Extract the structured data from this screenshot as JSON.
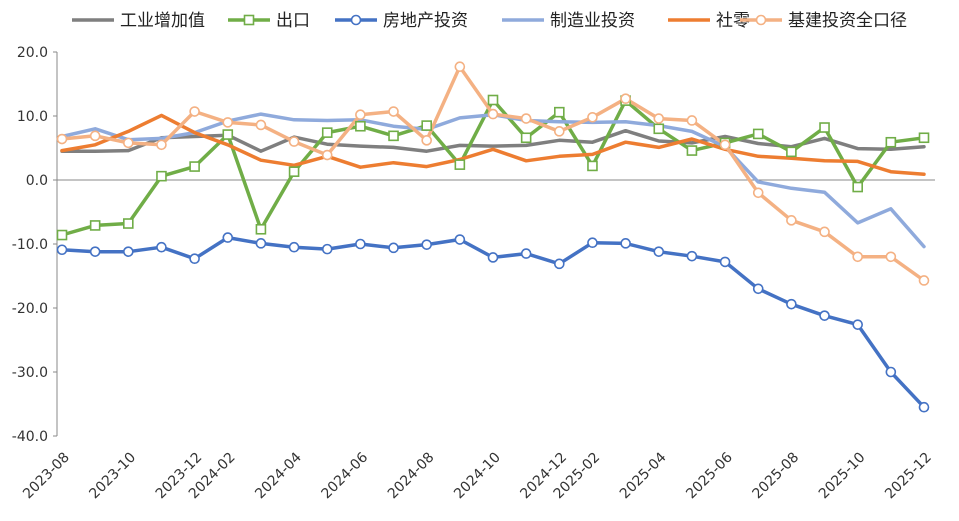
{
  "chart_data": {
    "type": "line",
    "x": [
      "2023-08",
      "2023-09",
      "2023-10",
      "2023-11",
      "2023-12",
      "2024-02",
      "2024-03",
      "2024-04",
      "2024-05",
      "2024-06",
      "2024-07",
      "2024-08",
      "2024-09",
      "2024-10",
      "2024-11",
      "2024-12",
      "2025-02",
      "2025-03",
      "2025-04",
      "2025-05",
      "2025-06",
      "2025-07",
      "2025-08",
      "2025-09",
      "2025-10",
      "2025-11",
      "2025-12"
    ],
    "x_tick_labels": [
      "2023-08",
      "2023-10",
      "2023-12",
      "2024-02",
      "2024-04",
      "2024-06",
      "2024-08",
      "2024-10",
      "2024-12",
      "2025-02",
      "2025-04",
      "2025-06",
      "2025-08",
      "2025-10",
      "2025-12"
    ],
    "ylim": [
      -40,
      20
    ],
    "y_ticks": [
      "-40.0",
      "-30.0",
      "-20.0",
      "-10.0",
      "0.0",
      "10.0",
      "20.0"
    ],
    "legend_position": "top",
    "grid": false,
    "series": [
      {
        "name": "工业增加值",
        "color": "#7f7f7f",
        "marker": "none",
        "values": [
          4.5,
          4.5,
          4.6,
          6.6,
          6.8,
          7.0,
          4.5,
          6.7,
          5.6,
          5.3,
          5.1,
          4.5,
          5.4,
          5.3,
          5.4,
          6.2,
          5.9,
          7.7,
          6.1,
          5.8,
          6.8,
          5.7,
          5.2,
          6.5,
          4.9,
          4.8,
          5.2
        ]
      },
      {
        "name": "出口",
        "color": "#70ad47",
        "marker": "square",
        "values": [
          -8.6,
          -7.1,
          -6.8,
          0.6,
          2.1,
          7.1,
          -7.7,
          1.3,
          7.4,
          8.4,
          6.9,
          8.5,
          2.4,
          12.5,
          6.6,
          10.6,
          2.2,
          12.4,
          8.0,
          4.6,
          5.8,
          7.2,
          4.4,
          8.2,
          -1.1,
          5.9,
          6.6
        ]
      },
      {
        "name": "房地产投资",
        "color": "#4472c4",
        "marker": "circle",
        "values": [
          -10.9,
          -11.2,
          -11.2,
          -10.5,
          -12.3,
          -9.0,
          -9.9,
          -10.5,
          -10.8,
          -10.0,
          -10.6,
          -10.1,
          -9.3,
          -12.1,
          -11.5,
          -13.1,
          -9.8,
          -9.9,
          -11.2,
          -11.9,
          -12.8,
          -17.0,
          -19.4,
          -21.2,
          -22.6,
          -30.0,
          -35.5
        ]
      },
      {
        "name": "制造业投资",
        "color": "#8faadc",
        "marker": "none",
        "values": [
          6.8,
          8.0,
          6.3,
          6.5,
          7.4,
          9.2,
          10.3,
          9.4,
          9.3,
          9.4,
          8.4,
          7.9,
          9.7,
          10.2,
          9.3,
          9.1,
          9.0,
          9.1,
          8.5,
          7.6,
          5.2,
          -0.3,
          -1.3,
          -1.9,
          -6.7,
          -4.5,
          -10.4
        ]
      },
      {
        "name": "社零",
        "color": "#ed7d31",
        "marker": "none",
        "values": [
          4.6,
          5.5,
          7.6,
          10.1,
          7.4,
          5.5,
          3.1,
          2.3,
          3.7,
          2.0,
          2.7,
          2.1,
          3.2,
          4.8,
          3.0,
          3.7,
          4.0,
          5.9,
          5.1,
          6.4,
          4.8,
          3.7,
          3.4,
          3.0,
          2.9,
          1.3,
          0.9
        ]
      },
      {
        "name": "基建投资全口径",
        "color": "#f4b183",
        "marker": "circle",
        "values": [
          6.4,
          6.9,
          5.8,
          5.5,
          10.7,
          9.0,
          8.6,
          6.0,
          3.9,
          10.2,
          10.7,
          6.2,
          17.7,
          10.3,
          9.6,
          7.6,
          9.8,
          12.7,
          9.6,
          9.3,
          5.5,
          -2.0,
          -6.3,
          -8.1,
          -12.0,
          -12.0,
          -15.7
        ]
      }
    ]
  }
}
